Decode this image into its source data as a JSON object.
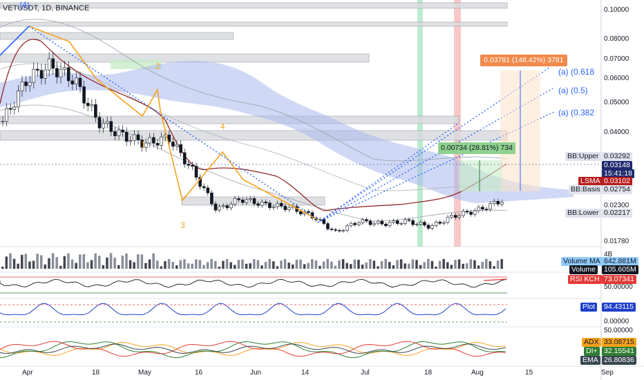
{
  "header": {
    "symbol": "VETUSDT, 1D, BINANCE"
  },
  "price_axis": [
    "0.10000",
    "0.08000",
    "0.07000",
    "0.06000",
    "0.05000",
    "0.04000",
    "0.02300",
    "0.01780"
  ],
  "x_axis": [
    "Apr",
    "18",
    "May",
    "16",
    "Jun",
    "14",
    "Jul",
    "18",
    "Aug",
    "15",
    "Sep"
  ],
  "waves": {
    "w1": "1",
    "w2": "2",
    "w3": "3",
    "w4": "4",
    "w4top": "(4)"
  },
  "fib": {
    "f618": "(a) (0.618",
    "f5": "(a) (0.5)",
    "f382": "(a) (0.382"
  },
  "measure_boxes": {
    "big": "0.03781 (148.42%) 3781",
    "small": "0.00734 (28.81%) 734"
  },
  "labels": {
    "bb_upper": "BB:Upper",
    "bb_upper_val": "0.03292",
    "price": "0.03148",
    "countdown": "15:41:18",
    "lsma": "LSMA",
    "lsma_val": "0.03102",
    "bb_basis": "BB:Basis",
    "bb_basis_val": "0.02754",
    "bb_lower": "BB:Lower",
    "bb_lower_val": "0.02217",
    "vol_ma": "Volume MA",
    "vol_ma_val": "642.881M",
    "volume": "Volume",
    "volume_val": "105.605M",
    "vol_top": "4B",
    "rsi": "RSI KCH",
    "rsi_val": "73.07341",
    "rsi_axis": "50.00000",
    "plot": "Plot",
    "plot_val": "94.43115",
    "plot_axis_top": "50.00000",
    "plot_axis_bot": "0.00000",
    "adx_axis": "50.00000",
    "adx": "ADX",
    "adx_val": "33.08715",
    "di": "DI+",
    "di_val": "32.15541",
    "ema": "EMA",
    "ema_val": "26.80836"
  },
  "colors": {
    "up": "#26a69a",
    "down": "#131722",
    "cloud": "#a8b8ec",
    "accent": "#2962ff",
    "orange": "#f5a21c",
    "red": "#e53935",
    "green": "#2e7d32"
  },
  "chart_data": {
    "type": "candlestick",
    "title": "VETUSDT, 1D, BINANCE",
    "ylim": [
      0.0178,
      0.1
    ],
    "close_series": [
      {
        "date": "2021-03-26",
        "close": 0.06
      },
      {
        "date": "2021-04-01",
        "close": 0.075
      },
      {
        "date": "2021-04-06",
        "close": 0.08
      },
      {
        "date": "2021-04-12",
        "close": 0.075
      },
      {
        "date": "2021-04-18",
        "close": 0.06
      },
      {
        "date": "2021-04-25",
        "close": 0.055
      },
      {
        "date": "2021-05-01",
        "close": 0.052
      },
      {
        "date": "2021-05-06",
        "close": 0.054
      },
      {
        "date": "2021-05-12",
        "close": 0.042
      },
      {
        "date": "2021-05-19",
        "close": 0.028
      },
      {
        "date": "2021-05-26",
        "close": 0.032
      },
      {
        "date": "2021-06-01",
        "close": 0.03
      },
      {
        "date": "2021-06-07",
        "close": 0.029
      },
      {
        "date": "2021-06-14",
        "close": 0.026
      },
      {
        "date": "2021-06-22",
        "close": 0.02
      },
      {
        "date": "2021-06-28",
        "close": 0.024
      },
      {
        "date": "2021-07-05",
        "close": 0.023
      },
      {
        "date": "2021-07-12",
        "close": 0.024
      },
      {
        "date": "2021-07-20",
        "close": 0.022
      },
      {
        "date": "2021-07-26",
        "close": 0.026
      },
      {
        "date": "2021-08-01",
        "close": 0.028
      },
      {
        "date": "2021-08-08",
        "close": 0.0315
      }
    ]
  }
}
